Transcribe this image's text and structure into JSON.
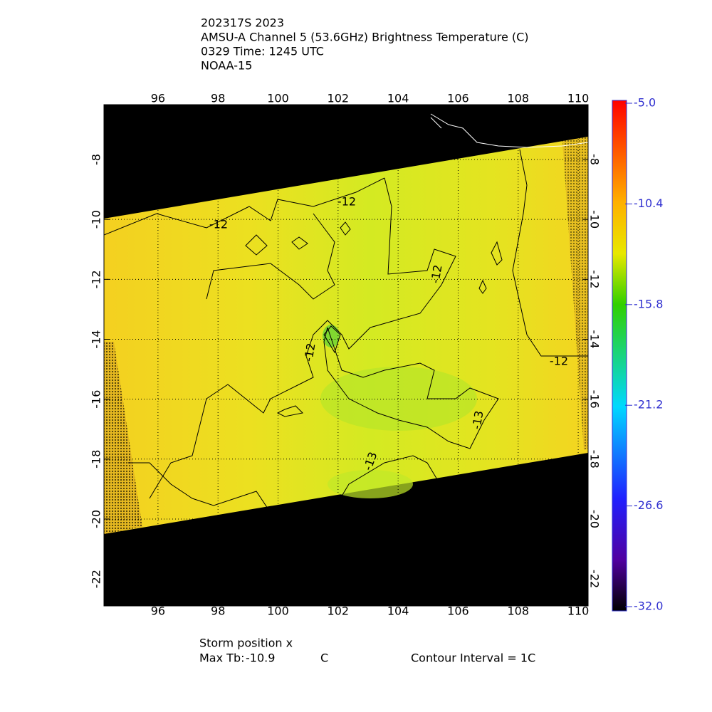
{
  "header": {
    "lines": [
      "202317S 2023",
      "AMSU-A Channel 5 (53.6GHz) Brightness Temperature (C)",
      "0329 Time: 1245 UTC",
      "NOAA-15"
    ]
  },
  "map": {
    "xlim": [
      94.2,
      110.33
    ],
    "ylim": [
      -22.9,
      -6.17
    ],
    "xticks": [
      96,
      98,
      100,
      102,
      104,
      106,
      108,
      110
    ],
    "yticks": [
      -8,
      -10,
      -12,
      -14,
      -16,
      -18,
      -20,
      -22
    ],
    "grid": true,
    "contour_labels": [
      -12,
      -12,
      -12,
      -12,
      -12,
      -13,
      -13
    ]
  },
  "colorbar": {
    "lim": [
      -32.0,
      -5.0
    ],
    "ticks": [
      {
        "value": -5.0,
        "label": "-5.0"
      },
      -10.4,
      -15.8,
      -21.2,
      -26.6,
      {
        "value": -32.0,
        "label": "-32.0"
      }
    ]
  },
  "footer": {
    "storm_position": "Storm position x",
    "max_tb_label": "Max Tb:",
    "max_tb": -10.9,
    "max_tb_unit": "C",
    "contour_interval": "Contour Interval = 1C"
  }
}
